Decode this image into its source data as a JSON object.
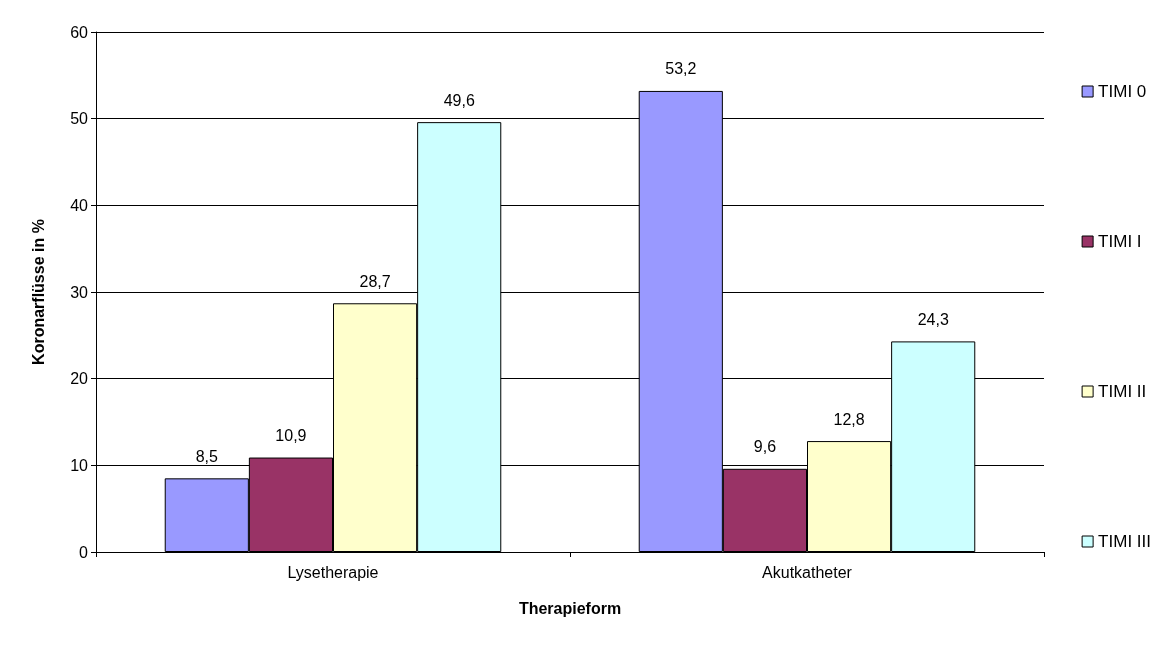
{
  "chart_data": {
    "type": "bar",
    "xlabel": "Therapieform",
    "ylabel": "Koronarflüsse in %",
    "categories": [
      "Lysetherapie",
      "Akutkatheter"
    ],
    "series": [
      {
        "name": "TIMI 0",
        "color": "#9999ff",
        "values": [
          8.5,
          53.2
        ],
        "value_labels": [
          "8,5",
          "53,2"
        ]
      },
      {
        "name": "TIMI I",
        "color": "#993366",
        "values": [
          10.9,
          9.6
        ],
        "value_labels": [
          "10,9",
          "9,6"
        ]
      },
      {
        "name": "TIMI II",
        "color": "#ffffcc",
        "values": [
          28.7,
          12.8
        ],
        "value_labels": [
          "28,7",
          "12,8"
        ]
      },
      {
        "name": "TIMI III",
        "color": "#ccffff",
        "values": [
          49.6,
          24.3
        ],
        "value_labels": [
          "49,6",
          "24,3"
        ]
      }
    ],
    "ylim": [
      0,
      60
    ],
    "yticks": [
      0,
      10,
      20,
      30,
      40,
      50,
      60
    ],
    "grid": "y",
    "legend": "right"
  }
}
